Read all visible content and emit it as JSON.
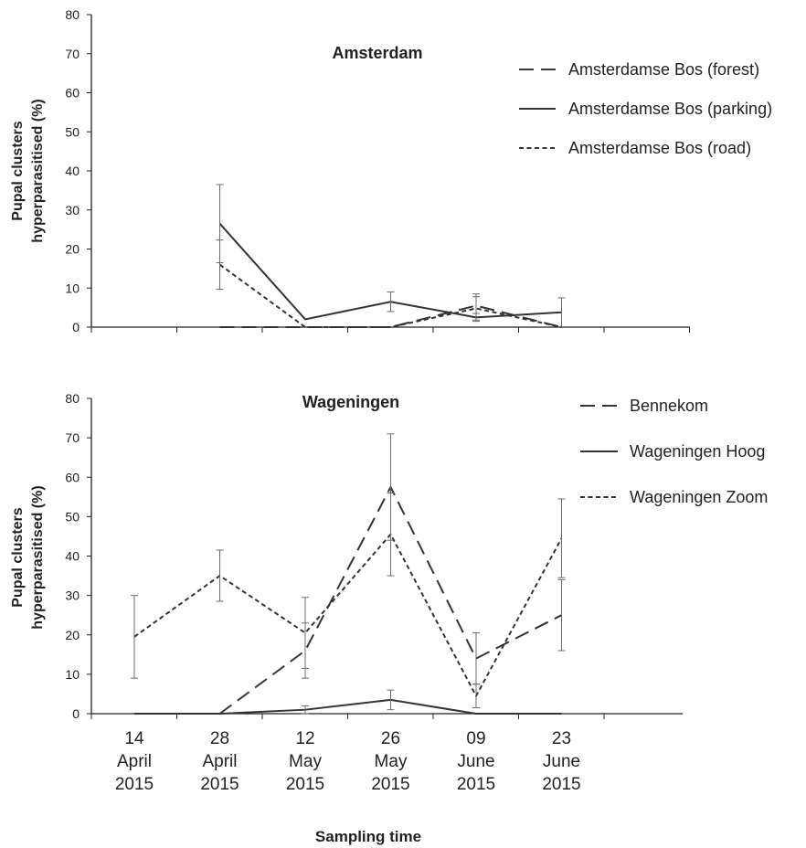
{
  "chart_data": [
    {
      "type": "line",
      "title": "Amsterdam",
      "ylabel": [
        "Pupal clusters",
        "hyperparasitised (%)"
      ],
      "xlabel": "",
      "ylim": [
        0,
        80
      ],
      "yticks": [
        0,
        10,
        20,
        30,
        40,
        50,
        60,
        70,
        80
      ],
      "categories": [
        "14 April 2015",
        "28 April 2015",
        "12 May 2015",
        "26 May 2015",
        "09 June 2015",
        "23 June 2015"
      ],
      "legend_position": "top-right",
      "series": [
        {
          "name": "Amsterdamse Bos (forest)",
          "style": "long-dash",
          "values": [
            null,
            0,
            0,
            0,
            5.5,
            0
          ],
          "err": [
            null,
            null,
            null,
            null,
            3,
            null
          ]
        },
        {
          "name": "Amsterdamse Bos (parking)",
          "style": "solid",
          "values": [
            null,
            26.5,
            2,
            6.5,
            2.5,
            3.8
          ],
          "err": [
            null,
            10,
            null,
            2.5,
            1,
            3.7
          ]
        },
        {
          "name": "Amsterdamse Bos (road)",
          "style": "short-dash",
          "values": [
            null,
            16,
            0,
            0,
            4.8,
            0
          ],
          "err": [
            null,
            6.3,
            null,
            null,
            3,
            null
          ]
        }
      ]
    },
    {
      "type": "line",
      "title": "Wageningen",
      "ylabel": [
        "Pupal clusters",
        "hyperparasitised (%)"
      ],
      "xlabel": "Sampling time",
      "ylim": [
        0,
        80
      ],
      "yticks": [
        0,
        10,
        20,
        30,
        40,
        50,
        60,
        70,
        80
      ],
      "categories": [
        "14 April 2015",
        "28 April 2015",
        "12 May 2015",
        "26 May 2015",
        "09 June 2015",
        "23 June 2015"
      ],
      "xtick_lines": [
        [
          "14",
          "April",
          "2015"
        ],
        [
          "28",
          "April",
          "2015"
        ],
        [
          "12",
          "May",
          "2015"
        ],
        [
          "26",
          "May",
          "2015"
        ],
        [
          "09",
          "June",
          "2015"
        ],
        [
          "23",
          "June",
          "2015"
        ]
      ],
      "legend_position": "top-right",
      "series": [
        {
          "name": "Bennekom",
          "style": "long-dash",
          "values": [
            null,
            0,
            16,
            57.5,
            14,
            25
          ],
          "err": [
            null,
            null,
            7,
            13.5,
            6.5,
            9
          ]
        },
        {
          "name": "Wageningen Hoog",
          "style": "solid",
          "values": [
            0,
            0,
            1,
            3.5,
            0,
            0
          ],
          "err": [
            null,
            null,
            1,
            2.5,
            null,
            null
          ]
        },
        {
          "name": "Wageningen Zoom",
          "style": "short-dash",
          "values": [
            19.5,
            35,
            20.5,
            45.5,
            4.5,
            44.5
          ],
          "err": [
            10.5,
            6.5,
            9,
            10.5,
            3,
            10
          ]
        }
      ]
    }
  ]
}
